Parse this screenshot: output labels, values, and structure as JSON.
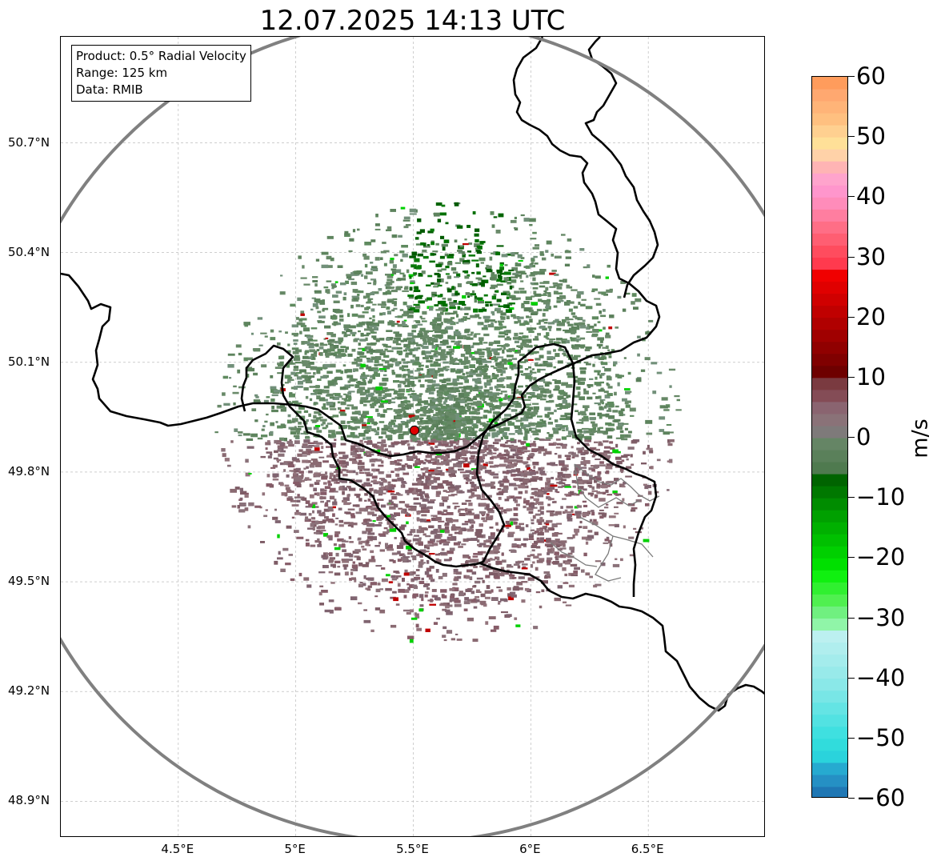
{
  "title": "12.07.2025 14:13 UTC",
  "info_box": {
    "product": "Product: 0.5° Radial Velocity",
    "range": "Range: 125 km",
    "data": "Data: RMIB"
  },
  "map": {
    "lon_range": [
      4.0,
      7.0
    ],
    "lat_range": [
      48.8,
      50.99
    ],
    "radar_site": {
      "lon": 5.505,
      "lat": 49.914,
      "color": "#e00000"
    },
    "range_ring": {
      "radius_km": 125,
      "color": "#808080"
    },
    "grid": true,
    "lat_ticks": [
      {
        "value": 50.7,
        "label": "50.7°N"
      },
      {
        "value": 50.4,
        "label": "50.4°N"
      },
      {
        "value": 50.1,
        "label": "50.1°N"
      },
      {
        "value": 49.8,
        "label": "49.8°N"
      },
      {
        "value": 49.5,
        "label": "49.5°N"
      },
      {
        "value": 49.2,
        "label": "49.2°N"
      },
      {
        "value": 48.9,
        "label": "48.9°N"
      }
    ],
    "lon_ticks": [
      {
        "value": 4.5,
        "label": "4.5°E"
      },
      {
        "value": 5.0,
        "label": "5°E"
      },
      {
        "value": 5.5,
        "label": "5.5°E"
      },
      {
        "value": 6.0,
        "label": "6°E"
      },
      {
        "value": 6.5,
        "label": "6.5°E"
      }
    ]
  },
  "colorbar": {
    "min": -60,
    "max": 60,
    "unit": "m/s",
    "ticks": [
      {
        "value": 60,
        "label": "60"
      },
      {
        "value": 50,
        "label": "50"
      },
      {
        "value": 40,
        "label": "40"
      },
      {
        "value": 30,
        "label": "30"
      },
      {
        "value": 20,
        "label": "20"
      },
      {
        "value": 10,
        "label": "10"
      },
      {
        "value": 0,
        "label": "0"
      },
      {
        "value": -10,
        "label": "−10"
      },
      {
        "value": -20,
        "label": "−20"
      },
      {
        "value": -30,
        "label": "−30"
      },
      {
        "value": -40,
        "label": "−40"
      },
      {
        "value": -50,
        "label": "−50"
      },
      {
        "value": -60,
        "label": "−60"
      }
    ],
    "stops": [
      {
        "from": -60,
        "to": -58,
        "color": "#1f77b4"
      },
      {
        "from": -58,
        "to": -56,
        "color": "#2590c4"
      },
      {
        "from": -56,
        "to": -54,
        "color": "#26aad0"
      },
      {
        "from": -54,
        "to": -52,
        "color": "#2ad3dc"
      },
      {
        "from": -52,
        "to": -50,
        "color": "#31dcdc"
      },
      {
        "from": -50,
        "to": -48,
        "color": "#3fe0e0"
      },
      {
        "from": -48,
        "to": -46,
        "color": "#52e2e2"
      },
      {
        "from": -46,
        "to": -44,
        "color": "#64e4e4"
      },
      {
        "from": -44,
        "to": -42,
        "color": "#78e6e6"
      },
      {
        "from": -42,
        "to": -40,
        "color": "#8ae8e8"
      },
      {
        "from": -40,
        "to": -38,
        "color": "#98eaea"
      },
      {
        "from": -38,
        "to": -36,
        "color": "#a4ecec"
      },
      {
        "from": -36,
        "to": -34,
        "color": "#b0eeee"
      },
      {
        "from": -34,
        "to": -32,
        "color": "#bcf0f0"
      },
      {
        "from": -32,
        "to": -30,
        "color": "#90f5a8"
      },
      {
        "from": -30,
        "to": -28,
        "color": "#70f080"
      },
      {
        "from": -28,
        "to": -26,
        "color": "#50f050"
      },
      {
        "from": -26,
        "to": -24,
        "color": "#30f030"
      },
      {
        "from": -24,
        "to": -22,
        "color": "#10f010"
      },
      {
        "from": -22,
        "to": -20,
        "color": "#00e000"
      },
      {
        "from": -20,
        "to": -18,
        "color": "#00d000"
      },
      {
        "from": -18,
        "to": -16,
        "color": "#00c000"
      },
      {
        "from": -16,
        "to": -14,
        "color": "#00b000"
      },
      {
        "from": -14,
        "to": -12,
        "color": "#00a000"
      },
      {
        "from": -12,
        "to": -10,
        "color": "#008c00"
      },
      {
        "from": -10,
        "to": -8,
        "color": "#007800"
      },
      {
        "from": -8,
        "to": -6,
        "color": "#006400"
      },
      {
        "from": -6,
        "to": -4,
        "color": "#4f7a4f"
      },
      {
        "from": -4,
        "to": -2,
        "color": "#5a805a"
      },
      {
        "from": -2,
        "to": 0,
        "color": "#658565"
      },
      {
        "from": 0,
        "to": 2,
        "color": "#7e7a7a"
      },
      {
        "from": 2,
        "to": 4,
        "color": "#8a7278"
      },
      {
        "from": 4,
        "to": 6,
        "color": "#8a6470"
      },
      {
        "from": 6,
        "to": 8,
        "color": "#844c56"
      },
      {
        "from": 8,
        "to": 10,
        "color": "#7a3a40"
      },
      {
        "from": 10,
        "to": 12,
        "color": "#6e0000"
      },
      {
        "from": 12,
        "to": 14,
        "color": "#800000"
      },
      {
        "from": 14,
        "to": 16,
        "color": "#900000"
      },
      {
        "from": 16,
        "to": 18,
        "color": "#a00000"
      },
      {
        "from": 18,
        "to": 20,
        "color": "#b00000"
      },
      {
        "from": 20,
        "to": 22,
        "color": "#c00000"
      },
      {
        "from": 22,
        "to": 24,
        "color": "#d00000"
      },
      {
        "from": 24,
        "to": 26,
        "color": "#e00000"
      },
      {
        "from": 26,
        "to": 28,
        "color": "#f00000"
      },
      {
        "from": 28,
        "to": 30,
        "color": "#ff3a4e"
      },
      {
        "from": 30,
        "to": 32,
        "color": "#ff4c5e"
      },
      {
        "from": 32,
        "to": 34,
        "color": "#ff5e72"
      },
      {
        "from": 34,
        "to": 36,
        "color": "#ff6e86"
      },
      {
        "from": 36,
        "to": 38,
        "color": "#ff7ea0"
      },
      {
        "from": 38,
        "to": 40,
        "color": "#ff8cba"
      },
      {
        "from": 40,
        "to": 42,
        "color": "#ff96cc"
      },
      {
        "from": 42,
        "to": 44,
        "color": "#ffa4cc"
      },
      {
        "from": 44,
        "to": 46,
        "color": "#ffb4b4"
      },
      {
        "from": 46,
        "to": 48,
        "color": "#ffd2a8"
      },
      {
        "from": 48,
        "to": 50,
        "color": "#ffe098"
      },
      {
        "from": 50,
        "to": 52,
        "color": "#ffd090"
      },
      {
        "from": 52,
        "to": 54,
        "color": "#ffc080"
      },
      {
        "from": 54,
        "to": 56,
        "color": "#ffb478"
      },
      {
        "from": 56,
        "to": 58,
        "color": "#ffa870"
      },
      {
        "from": 58,
        "to": 60,
        "color": "#ff9c5c"
      }
    ]
  }
}
